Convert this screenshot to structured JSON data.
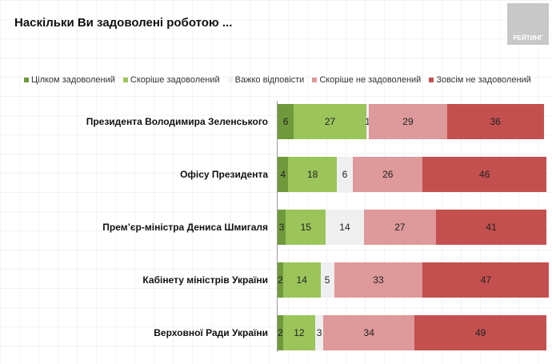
{
  "chart_data": {
    "type": "bar",
    "orientation": "horizontal-stacked",
    "title": "Наскільки Ви задоволені роботою ...",
    "legend_position": "top",
    "categories": [
      "Президента Володимира Зеленського",
      "Офісу Президента",
      "Прем’єр-міністра Дениса Шмигаля",
      "Кабінету міністрів України",
      "Верховної Ради України"
    ],
    "series": [
      {
        "name": "Цілком задоволений",
        "color": "#6f9a3c",
        "values": [
          6,
          4,
          3,
          2,
          2
        ]
      },
      {
        "name": "Скоріше задоволений",
        "color": "#9bc45a",
        "values": [
          27,
          18,
          15,
          14,
          12
        ]
      },
      {
        "name": "Важко відповісти",
        "color": "#efefef",
        "values": [
          1,
          6,
          14,
          5,
          3
        ]
      },
      {
        "name": "Скоріше не задоволений",
        "color": "#de999a",
        "values": [
          29,
          26,
          27,
          33,
          34
        ]
      },
      {
        "name": "Зовсім не задоволений",
        "color": "#c3504f",
        "values": [
          36,
          46,
          41,
          47,
          49
        ]
      }
    ]
  },
  "logo_text": "РЕЙТИНГ"
}
